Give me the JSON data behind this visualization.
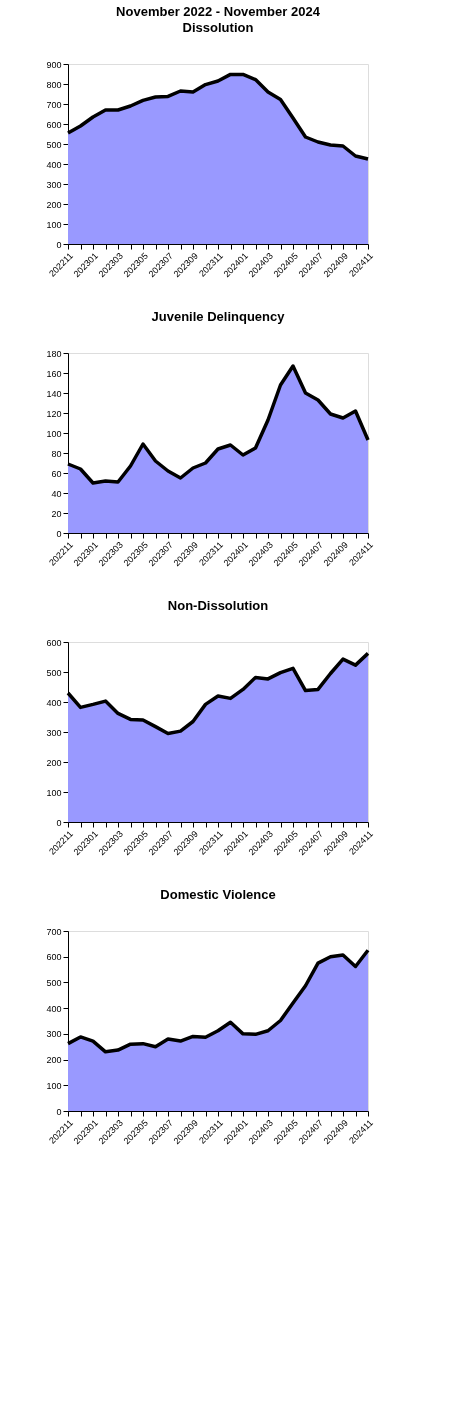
{
  "chart_data": [
    {
      "type": "area",
      "title": "November 2022 - November 2024",
      "subtitle": "Dissolution",
      "categories": [
        "202211",
        null,
        "202301",
        null,
        "202303",
        null,
        "202305",
        null,
        "202307",
        null,
        "202309",
        null,
        "202311",
        null,
        "202401",
        null,
        "202403",
        null,
        "202405",
        null,
        "202407",
        null,
        "202409",
        null,
        "202411"
      ],
      "series": [
        {
          "color": "#9999ff",
          "values": [
            555,
            590,
            635,
            670,
            670,
            690,
            718,
            735,
            738,
            765,
            760,
            797,
            815,
            848,
            848,
            822,
            760,
            722,
            630,
            535,
            510,
            495,
            490,
            440,
            425
          ]
        }
      ],
      "ylim": [
        0,
        900
      ],
      "yticks": [
        0,
        100,
        200,
        300,
        400,
        500,
        600,
        700,
        800,
        900
      ],
      "grid": false
    },
    {
      "type": "area",
      "title": "Juvenile Delinquency",
      "categories": [
        "202211",
        null,
        "202301",
        null,
        "202303",
        null,
        "202305",
        null,
        "202307",
        null,
        "202309",
        null,
        "202311",
        null,
        "202401",
        null,
        "202403",
        null,
        "202405",
        null,
        "202407",
        null,
        "202409",
        null,
        "202411"
      ],
      "series": [
        {
          "color": "#9999ff",
          "values": [
            69,
            64,
            50,
            52,
            51,
            67,
            89,
            72,
            62,
            55,
            65,
            70,
            84,
            88,
            78,
            85,
            113,
            148,
            167,
            140,
            133,
            119,
            115,
            122,
            93
          ]
        }
      ],
      "ylim": [
        0,
        180
      ],
      "yticks": [
        0,
        20,
        40,
        60,
        80,
        100,
        120,
        140,
        160,
        180
      ],
      "grid": false
    },
    {
      "type": "area",
      "title": "Non-Dissolution",
      "categories": [
        "202211",
        null,
        "202301",
        null,
        "202303",
        null,
        "202305",
        null,
        "202307",
        null,
        "202309",
        null,
        "202311",
        null,
        "202401",
        null,
        "202403",
        null,
        "202405",
        null,
        "202407",
        null,
        "202409",
        null,
        "202411"
      ],
      "series": [
        {
          "color": "#9999ff",
          "values": [
            430,
            382,
            392,
            403,
            362,
            342,
            340,
            318,
            295,
            303,
            335,
            392,
            420,
            412,
            442,
            482,
            477,
            498,
            512,
            438,
            442,
            495,
            543,
            523,
            562
          ]
        }
      ],
      "ylim": [
        0,
        600
      ],
      "yticks": [
        0,
        100,
        200,
        300,
        400,
        500,
        600
      ],
      "grid": false
    },
    {
      "type": "area",
      "title": "Domestic Violence",
      "categories": [
        "202211",
        null,
        "202301",
        null,
        "202303",
        null,
        "202305",
        null,
        "202307",
        null,
        "202309",
        null,
        "202311",
        null,
        "202401",
        null,
        "202403",
        null,
        "202405",
        null,
        "202407",
        null,
        "202409",
        null,
        "202411"
      ],
      "series": [
        {
          "color": "#9999ff",
          "values": [
            262,
            288,
            272,
            230,
            237,
            260,
            262,
            250,
            280,
            272,
            290,
            287,
            312,
            345,
            300,
            298,
            312,
            352,
            420,
            487,
            575,
            600,
            607,
            562,
            625
          ]
        }
      ],
      "ylim": [
        0,
        700
      ],
      "yticks": [
        0,
        100,
        200,
        300,
        400,
        500,
        600,
        700
      ],
      "grid": false
    }
  ]
}
